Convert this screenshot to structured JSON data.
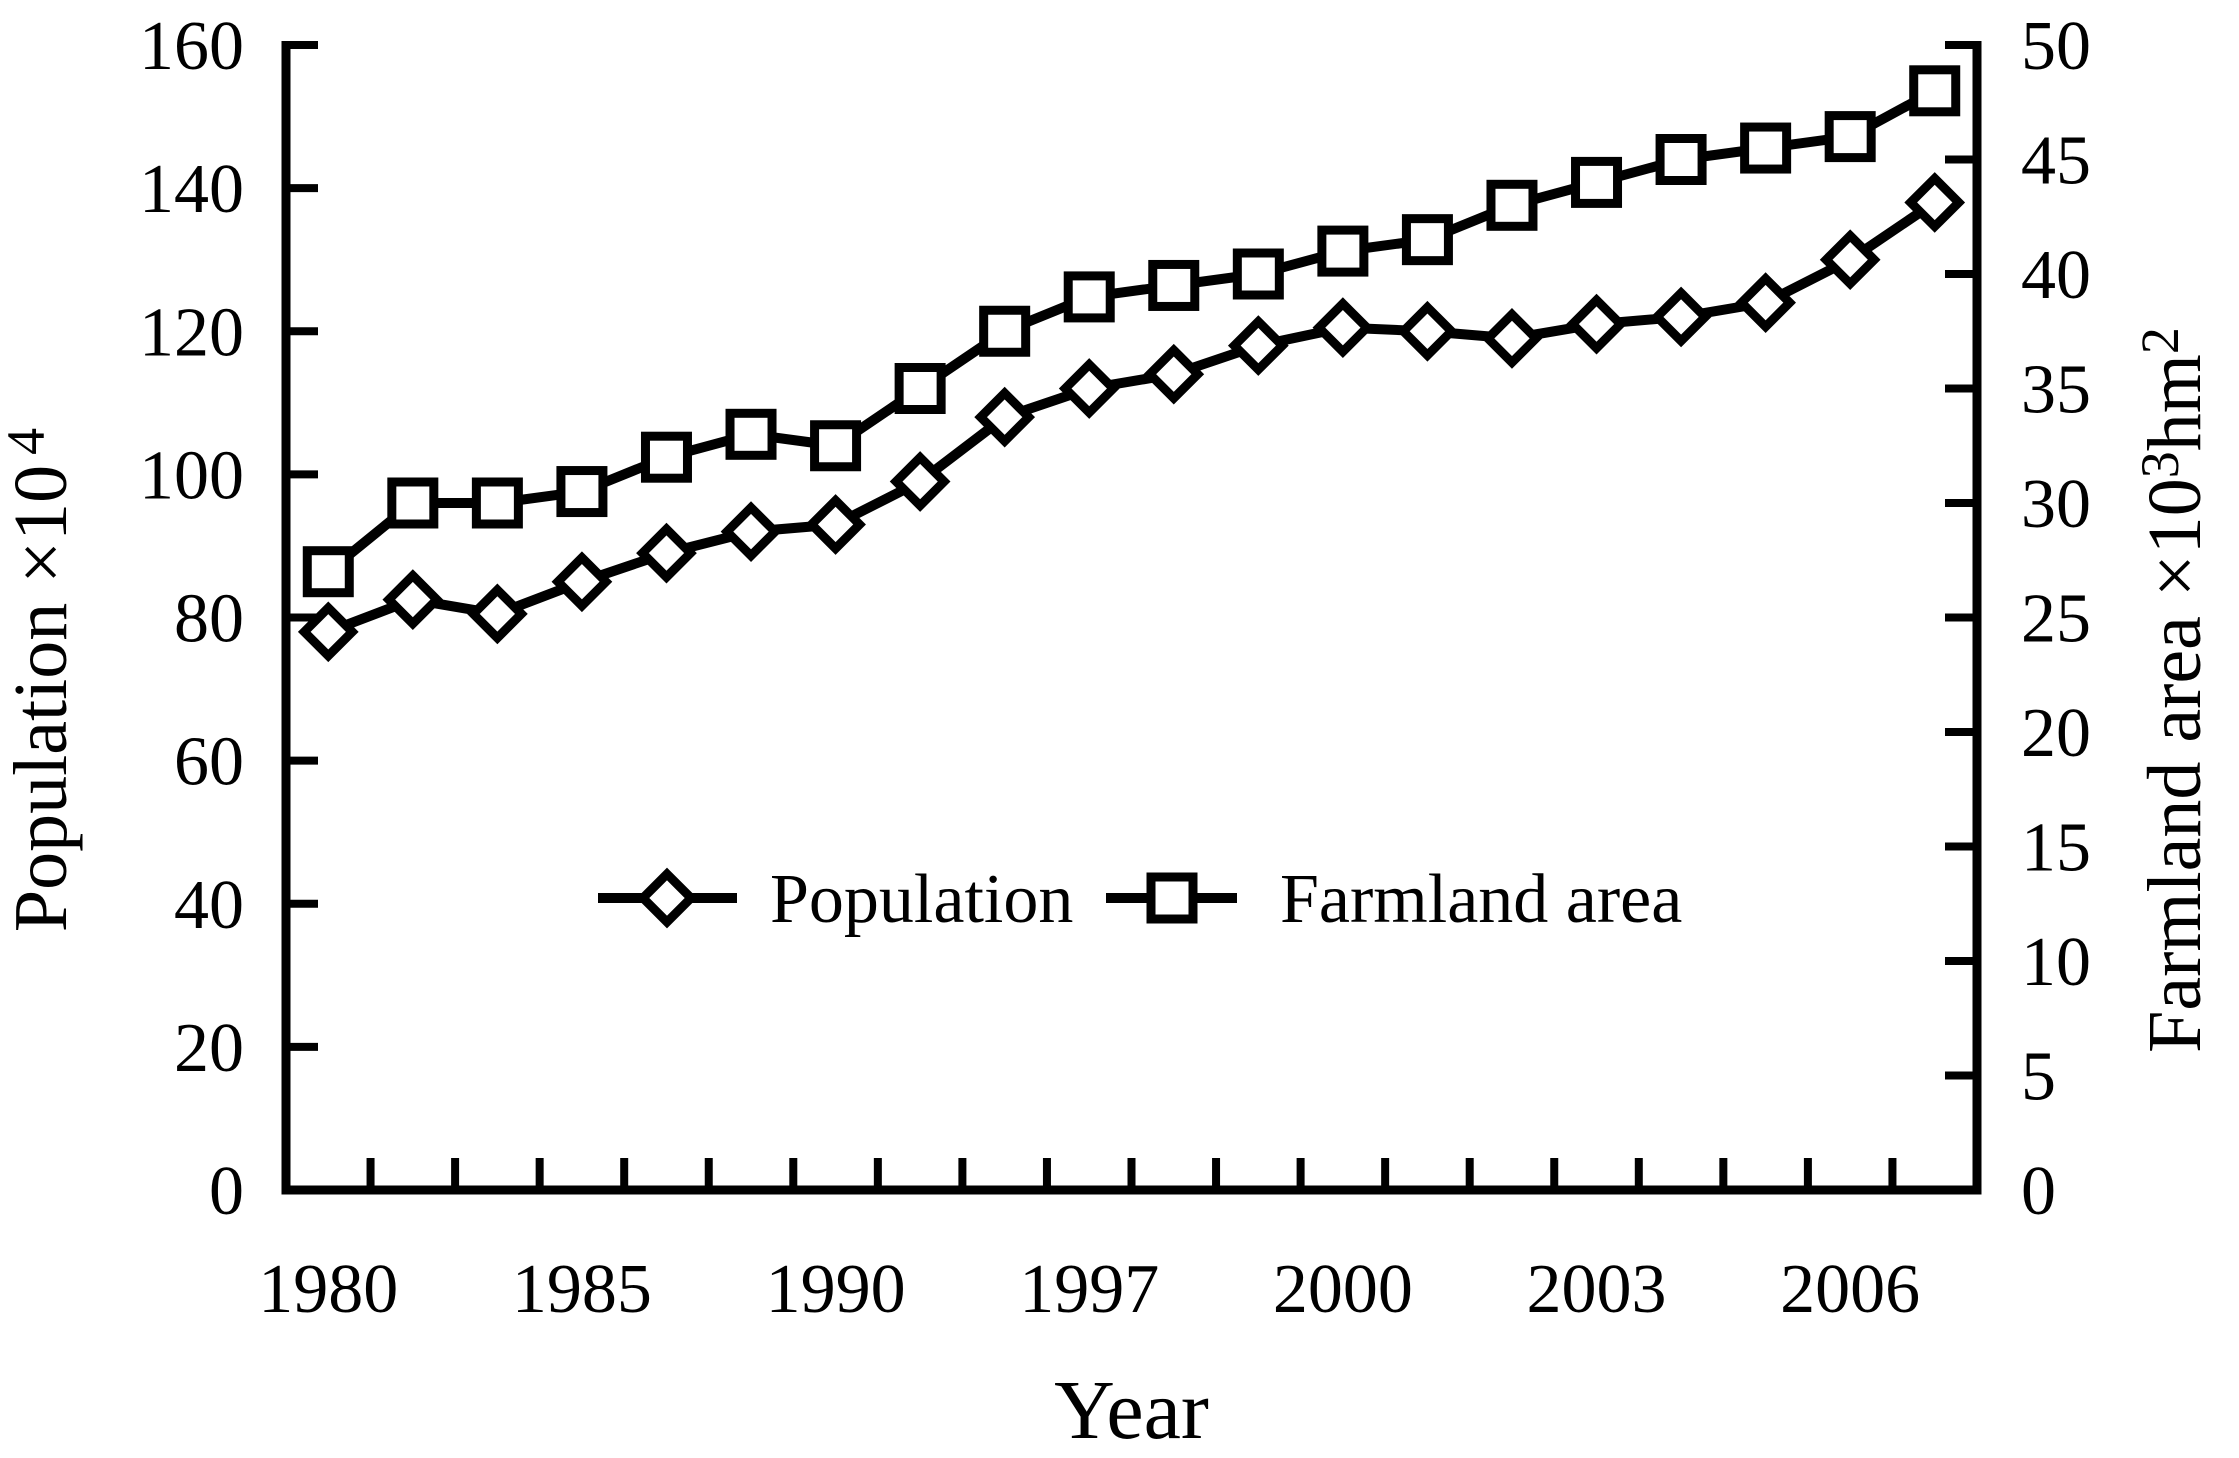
{
  "chart_data": {
    "type": "line",
    "title": "",
    "x_axis": {
      "label": "Year",
      "n_points": 20,
      "tick_labels": [
        {
          "index": 0,
          "label": "1980"
        },
        {
          "index": 3,
          "label": "1985"
        },
        {
          "index": 6,
          "label": "1990"
        },
        {
          "index": 9,
          "label": "1997"
        },
        {
          "index": 12,
          "label": "2000"
        },
        {
          "index": 15,
          "label": "2003"
        },
        {
          "index": 18,
          "label": "2006"
        }
      ]
    },
    "left_axis": {
      "label": "Population ×10⁴",
      "label_parts": {
        "base": "Population ×10",
        "sup": "4"
      },
      "min": 0,
      "max": 160,
      "step": 20,
      "ticks": [
        0,
        20,
        40,
        60,
        80,
        100,
        120,
        140,
        160
      ]
    },
    "right_axis": {
      "label": "Farmland area ×10³hm²",
      "label_parts": {
        "base": "Farmland area ×10",
        "sup1": "3",
        "mid": "hm",
        "sup2": "2"
      },
      "min": 0,
      "max": 50,
      "step": 5,
      "ticks": [
        0,
        5,
        10,
        15,
        20,
        25,
        30,
        35,
        40,
        45,
        50
      ]
    },
    "series": [
      {
        "name": "Population",
        "axis": "left",
        "marker": "diamond",
        "values": [
          78,
          82.5,
          80.5,
          85,
          89,
          92,
          93,
          99,
          108,
          112,
          114,
          118,
          120.5,
          120,
          119,
          121,
          122,
          124,
          130,
          138
        ]
      },
      {
        "name": "Farmland area",
        "axis": "right",
        "marker": "square",
        "values": [
          27,
          30,
          30,
          30.5,
          32,
          33,
          32.5,
          35,
          37.5,
          39,
          39.5,
          40,
          41,
          41.5,
          43,
          44,
          45,
          45.5,
          46,
          48
        ]
      }
    ],
    "legend": {
      "position": "inside-center",
      "items": [
        {
          "label": "Population",
          "marker": "diamond"
        },
        {
          "label": "Farmland area",
          "marker": "square"
        }
      ]
    },
    "colors": {
      "line": "#000000",
      "marker_fill": "#ffffff",
      "background": "#ffffff",
      "text": "#000000"
    }
  }
}
